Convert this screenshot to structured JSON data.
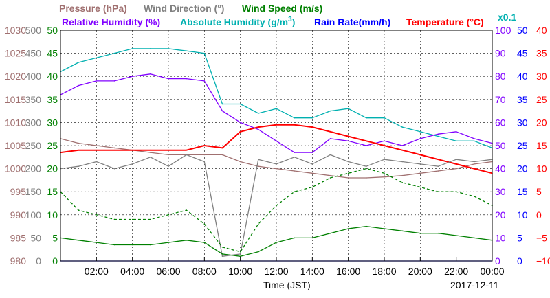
{
  "chart_data": {
    "type": "line",
    "title": "",
    "date": "2017-12-11",
    "xlabel": "Time (JST)",
    "x_tick_labels": [
      "02:00",
      "04:00",
      "06:00",
      "08:00",
      "10:00",
      "12:00",
      "14:00",
      "16:00",
      "18:00",
      "20:00",
      "22:00",
      "00:00"
    ],
    "x_hours": [
      0,
      1,
      2,
      3,
      4,
      5,
      6,
      7,
      8,
      9,
      10,
      11,
      12,
      13,
      14,
      15,
      16,
      17,
      18,
      19,
      20,
      21,
      22,
      23,
      24
    ],
    "grid": true,
    "colors": {
      "pressure": "#a07070",
      "wind_direction": "#808080",
      "wind_speed": "#008000",
      "relative_humidity": "#8000ff",
      "absolute_humidity": "#00b0b0",
      "rain_rate": "#0000ff",
      "temperature": "#ff0000"
    },
    "legend": {
      "pressure": "Pressure (hPa)",
      "wind_direction": "Wind Direction (°)",
      "wind_speed": "Wind Speed (m/s)",
      "relative_humidity": "Relative Humidity (%)",
      "absolute_humidity_base": "Absolute Humidity (g/m",
      "absolute_humidity_sup": "3",
      "absolute_humidity_end": ")",
      "rain_rate": "Rain Rate(mm/h)",
      "temperature": "Temperature (°C)",
      "scale_note": "x0.1"
    },
    "axes": {
      "pressure": {
        "ylim": [
          980,
          1030
        ],
        "ticks": [
          "1030",
          "1025",
          "1020",
          "1015",
          "1010",
          "1005",
          "1000",
          "995",
          "990",
          "985",
          "980"
        ]
      },
      "wind_direction": {
        "ylim": [
          0,
          500
        ],
        "ticks": [
          "500",
          "450",
          "400",
          "350",
          "300",
          "250",
          "200",
          "150",
          "100",
          "50",
          "0"
        ]
      },
      "wind_speed": {
        "ylim": [
          0,
          50
        ],
        "ticks": [
          "50",
          "45",
          "40",
          "35",
          "30",
          "25",
          "20",
          "15",
          "10",
          "5",
          "0"
        ]
      },
      "relative_humidity": {
        "ylim": [
          0,
          100
        ],
        "ticks": [
          "100",
          "90",
          "80",
          "70",
          "60",
          "50",
          "40",
          "30",
          "20",
          "10",
          "0"
        ]
      },
      "rain_rate": {
        "ylim": [
          0,
          50
        ],
        "ticks": [
          "50",
          "45",
          "40",
          "35",
          "30",
          "25",
          "20",
          "15",
          "10",
          "5",
          "0"
        ]
      },
      "temperature": {
        "ylim": [
          -10,
          40
        ],
        "ticks": [
          "40",
          "35",
          "30",
          "25",
          "20",
          "15",
          "10",
          "5",
          "0",
          "−5",
          "−10"
        ]
      }
    },
    "series": [
      {
        "name": "Pressure (hPa)",
        "key": "pressure",
        "values": [
          1006.5,
          1005.5,
          1005,
          1004.5,
          1004,
          1003.5,
          1003,
          1003,
          1003,
          1003,
          1001.5,
          1000.5,
          1000,
          999.5,
          999,
          998.5,
          998,
          998,
          998.2,
          998.5,
          999,
          999.5,
          1000,
          1001,
          1001.5
        ]
      },
      {
        "name": "Absolute Humidity (g/m3)",
        "key": "absolute_humidity",
        "scale": "x0.1 on wind speed axis",
        "values": [
          41,
          43,
          44,
          45,
          46,
          46,
          46,
          45.5,
          45,
          34,
          34,
          32,
          33,
          31,
          31,
          32.5,
          33,
          31,
          31,
          29,
          28,
          27,
          26,
          26,
          24.5
        ]
      },
      {
        "name": "Relative Humidity (%)",
        "key": "relative_humidity",
        "values": [
          72,
          76,
          78,
          78,
          80,
          81,
          79,
          79,
          78,
          65,
          60,
          57,
          52,
          47,
          47,
          53,
          52,
          50,
          52,
          50,
          53,
          55,
          56,
          53,
          51
        ]
      },
      {
        "name": "Temperature (°C)",
        "key": "temperature",
        "values": [
          13.5,
          14,
          14,
          14,
          14,
          14,
          14,
          14,
          15,
          14.5,
          18,
          19,
          19.5,
          19.5,
          19,
          18,
          17,
          16,
          15,
          14,
          13,
          12,
          11,
          10,
          9
        ]
      },
      {
        "name": "Wind Direction (°)",
        "key": "wind_direction",
        "values": [
          200,
          205,
          215,
          200,
          210,
          225,
          205,
          230,
          215,
          10,
          15,
          220,
          210,
          225,
          210,
          230,
          215,
          205,
          220,
          215,
          210,
          205,
          220,
          215,
          220
        ]
      },
      {
        "name": "Wind Speed (m/s)",
        "key": "wind_speed",
        "values": [
          5,
          4.5,
          4,
          3.5,
          3.5,
          3.5,
          4,
          4.5,
          4,
          1.5,
          1,
          2,
          4,
          5,
          5,
          6,
          7,
          7.5,
          7,
          6.5,
          6,
          6,
          5.5,
          5,
          4.5
        ]
      },
      {
        "name": "Wind Speed gust (m/s)",
        "key": "wind_speed_gust",
        "style": "dashed",
        "values": [
          15,
          11,
          10,
          9,
          9,
          9,
          10,
          11,
          8,
          3,
          2,
          8,
          12,
          15,
          16,
          18,
          19,
          20,
          19,
          17,
          16,
          15,
          15,
          14,
          12
        ]
      },
      {
        "name": "Rain Rate(mm/h)",
        "key": "rain_rate",
        "values": [
          0,
          0,
          0,
          0,
          0,
          0,
          0,
          0,
          0,
          0,
          0,
          0,
          0,
          0,
          0,
          0,
          0,
          0,
          0,
          0,
          0,
          0,
          0,
          0,
          0
        ]
      }
    ]
  }
}
